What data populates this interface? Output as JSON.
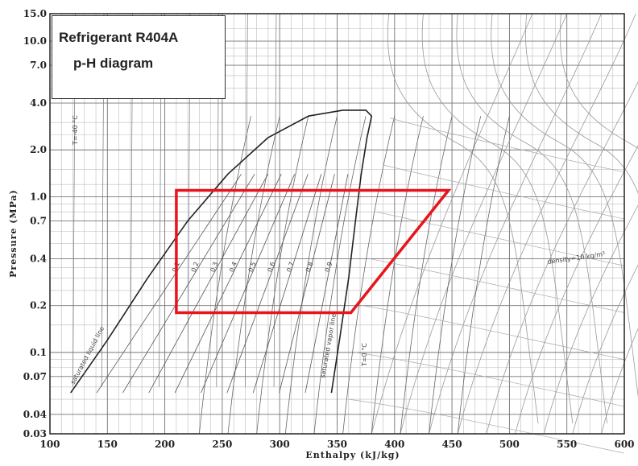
{
  "title": {
    "line1": "Refrigerant R404A",
    "line2": "p-H diagram"
  },
  "axes": {
    "x": {
      "label": "Enthalpy  (kJ/kg)",
      "range": [
        100,
        600
      ],
      "ticks": [
        "100",
        "150",
        "200",
        "250",
        "300",
        "350",
        "400",
        "450",
        "500",
        "550",
        "600"
      ]
    },
    "y": {
      "label": "Pressure  (MPa)",
      "scale": "log",
      "range": [
        0.03,
        15.0
      ],
      "ticks": [
        "0.03",
        "0.04",
        "0.07",
        "0.1",
        "0.2",
        "0.4",
        "0.7",
        "1.0",
        "2.0",
        "4.0",
        "7.0",
        "10.0",
        "15.0"
      ]
    }
  },
  "curve_labels": {
    "saturated_liquid": "saturated liquid line",
    "saturated_vapor": "saturated vapor line",
    "temperature": "T=0 °C",
    "temperature_top": "T=-40 °C",
    "density": "density=10 kg/m³",
    "quality": [
      "0.1",
      "0.2",
      "0.3",
      "0.4",
      "0.5",
      "0.6",
      "0.7",
      "0.8",
      "0.9"
    ]
  },
  "cycle": {
    "color": "#e8141b",
    "points_h_p": [
      [
        210,
        1.1
      ],
      [
        447,
        1.1
      ],
      [
        362,
        0.18
      ],
      [
        210,
        0.18
      ]
    ]
  }
}
